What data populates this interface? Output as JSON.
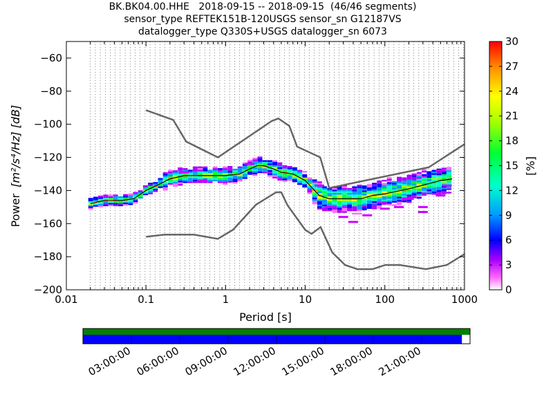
{
  "title": {
    "line1": "BK.BK04.00.HHE   2018-09-15 -- 2018-09-15  (46/46 segments)",
    "line2": "sensor_type REFTEK151B-120USGS sensor_sn G12187VS",
    "line3": "datalogger_type Q330S+USGS datalogger_sn 6073"
  },
  "chart_data": {
    "type": "heatmap",
    "xlabel": "Period [s]",
    "ylabel_prefix": "Power",
    "ylabel_units": "[m²/s⁴/Hz] [dB]",
    "xscale": "log",
    "xlim": [
      0.01,
      1000
    ],
    "ylim": [
      -200,
      -50
    ],
    "x_ticks": [
      {
        "value": 0.01,
        "label": "0.01"
      },
      {
        "value": 0.1,
        "label": "0.1"
      },
      {
        "value": 1,
        "label": "1"
      },
      {
        "value": 10,
        "label": "10"
      },
      {
        "value": 100,
        "label": "100"
      },
      {
        "value": 1000,
        "label": "1000"
      }
    ],
    "y_ticks": [
      {
        "value": -60,
        "label": "−60"
      },
      {
        "value": -80,
        "label": "−80"
      },
      {
        "value": -100,
        "label": "−100"
      },
      {
        "value": -120,
        "label": "−120"
      },
      {
        "value": -140,
        "label": "−140"
      },
      {
        "value": -160,
        "label": "−160"
      },
      {
        "value": -180,
        "label": "−180"
      },
      {
        "value": -200,
        "label": "−200"
      }
    ],
    "grid": "dotted vertical lines at period bins",
    "colorbar": {
      "label": "[%]",
      "range": [
        0,
        30
      ],
      "ticks": [
        "0",
        "3",
        "6",
        "9",
        "12",
        "15",
        "18",
        "21",
        "24",
        "27",
        "30"
      ]
    },
    "noise_model_high": {
      "period": [
        0.1,
        0.22,
        0.32,
        0.8,
        3.8,
        4.6,
        6.3,
        7.9,
        15.4,
        20,
        354.8,
        1000
      ],
      "power": [
        -91.5,
        -97.4,
        -110.5,
        -120,
        -98,
        -96.5,
        -101,
        -113.5,
        -120,
        -138.5,
        -126,
        -112
      ]
    },
    "noise_model_low": {
      "period": [
        0.1,
        0.17,
        0.4,
        0.8,
        1.24,
        2.4,
        4.3,
        5,
        6,
        10,
        12,
        15.6,
        21.9,
        31.6,
        45,
        70,
        101,
        154,
        328,
        600,
        1000
      ],
      "power": [
        -168,
        -166.7,
        -166.7,
        -169.2,
        -163.7,
        -148.6,
        -141.1,
        -141.1,
        -149,
        -163.8,
        -166.2,
        -162.1,
        -177.5,
        -185,
        -187.5,
        -187.5,
        -185,
        -185,
        -187.5,
        -185,
        -178.4
      ]
    },
    "mean_curve": {
      "period": [
        0.02,
        0.03,
        0.05,
        0.07,
        0.1,
        0.15,
        0.2,
        0.3,
        0.5,
        1,
        1.5,
        2,
        2.5,
        3,
        4,
        5,
        7,
        10,
        15,
        20,
        30,
        50,
        70,
        100,
        200,
        500,
        700
      ],
      "power": [
        -148,
        -146,
        -146,
        -145,
        -140,
        -136,
        -133,
        -131,
        -131,
        -131,
        -130,
        -127,
        -125,
        -125,
        -127,
        -129,
        -130,
        -134,
        -143,
        -145,
        -145,
        -145,
        -143,
        -142,
        -139,
        -134,
        -133
      ]
    },
    "percentile_scatter": [
      {
        "period": 0.3,
        "power": -129
      },
      {
        "period": 0.5,
        "power": -134
      },
      {
        "period": 2,
        "power": -124
      },
      {
        "period": 15,
        "power": -137
      },
      {
        "period": 20,
        "power": -150
      },
      {
        "period": 30,
        "power": -156
      },
      {
        "period": 40,
        "power": -159
      },
      {
        "period": 60,
        "power": -155
      },
      {
        "period": 100,
        "power": -151
      },
      {
        "period": 150,
        "power": -150
      },
      {
        "period": 200,
        "power": -145
      },
      {
        "period": 300,
        "power": -150
      },
      {
        "period": 500,
        "power": -128
      },
      {
        "period": 500,
        "power": -143
      },
      {
        "period": 600,
        "power": -137
      },
      {
        "period": 300,
        "power": -153
      }
    ]
  },
  "coverage": {
    "tick_labels": [
      "03:00:00",
      "06:00:00",
      "09:00:00",
      "12:00:00",
      "15:00:00",
      "18:00:00",
      "21:00:00"
    ],
    "fill_fraction": 0.979,
    "color_top": "#008000",
    "color_bottom": "#0000ff"
  }
}
